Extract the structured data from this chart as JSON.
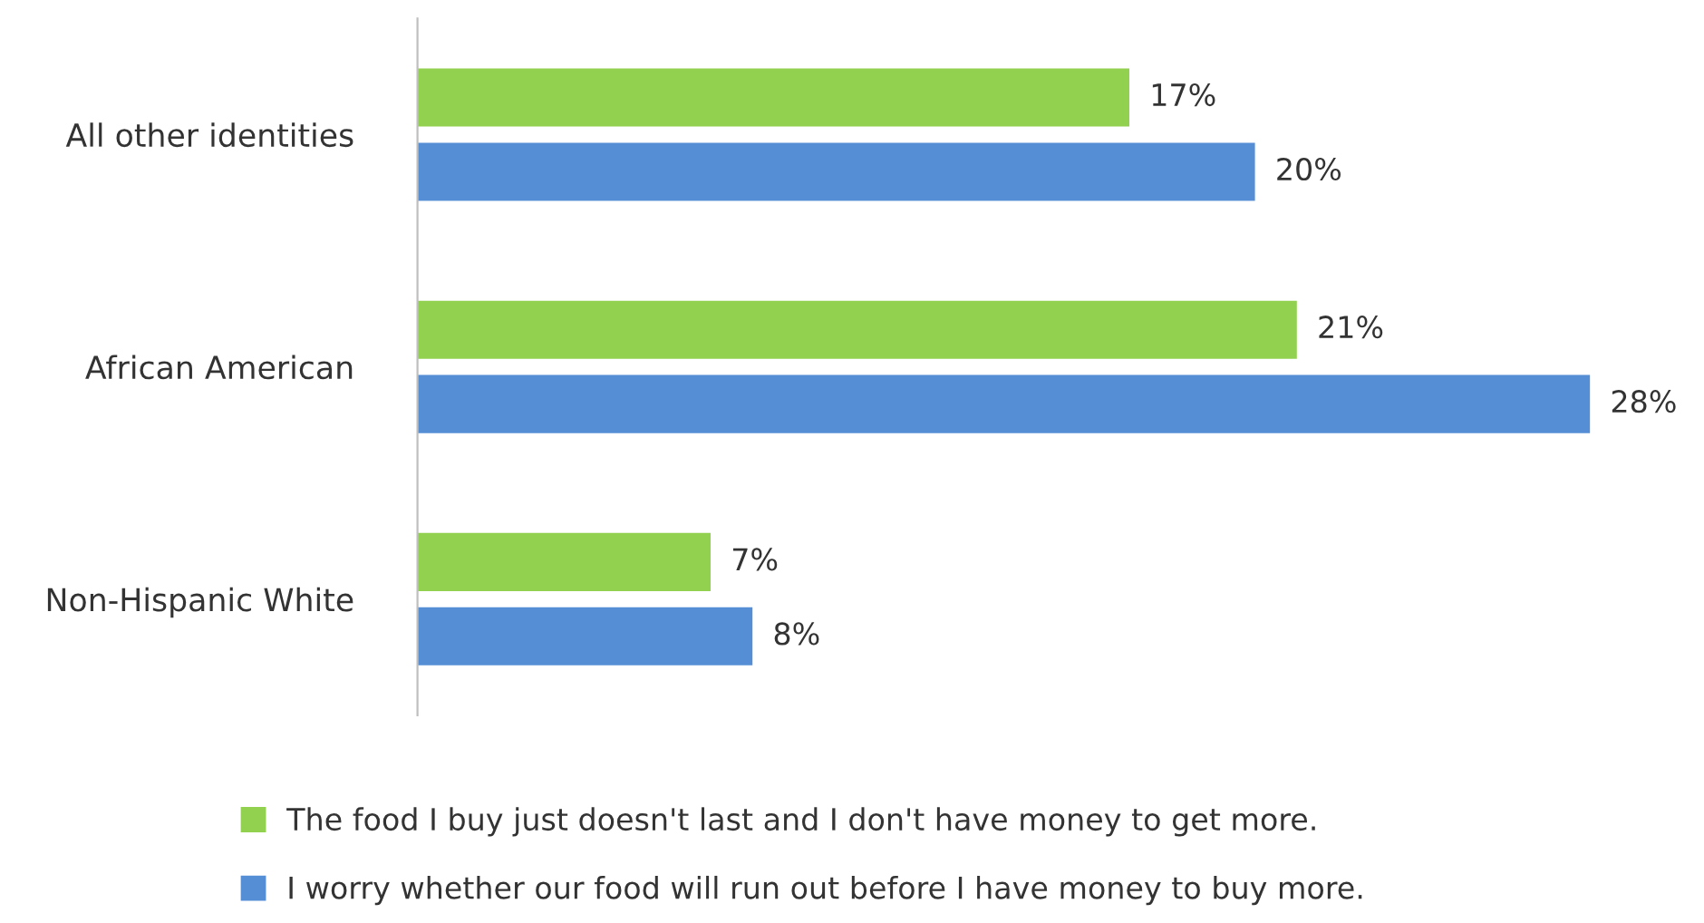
{
  "chart_data": {
    "type": "bar",
    "orientation": "horizontal",
    "categories": [
      "All other identities",
      "African American",
      "Non-Hispanic White"
    ],
    "series": [
      {
        "name": "The food I buy just doesn't last and I don't have money to get more.",
        "color": "#92d050",
        "values": [
          17,
          21,
          7
        ],
        "value_labels": [
          "17%",
          "21%",
          "7%"
        ]
      },
      {
        "name": "I worry whether our food will run out before I have money to buy more.",
        "color": "#558ed5",
        "values": [
          20,
          28,
          8
        ],
        "value_labels": [
          "20%",
          "28%",
          "8%"
        ]
      }
    ],
    "legend": "bottom",
    "grid": false
  }
}
